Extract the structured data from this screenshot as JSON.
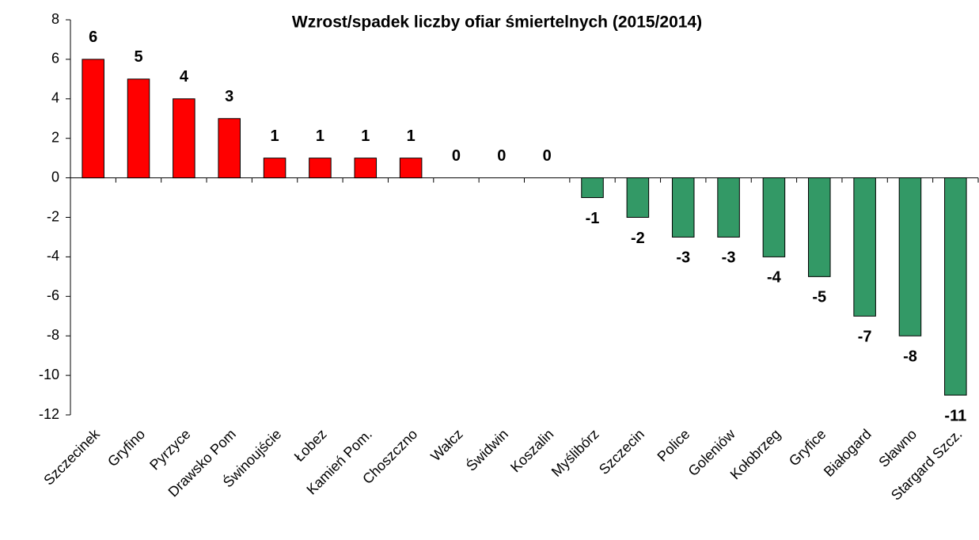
{
  "chart_data": {
    "type": "bar",
    "title": "Wzrost/spadek liczby ofiar śmiertelnych (2015/2014)",
    "categories": [
      "Szczecinek",
      "Gryfino",
      "Pyrzyce",
      "Drawsko Pom",
      "Świnoujście",
      "Łobez",
      "Kamień Pom.",
      "Choszczno",
      "Wałcz",
      "Świdwin",
      "Koszalin",
      "Myślibórz",
      "Szczecin",
      "Police",
      "Goleniów",
      "Kołobrzeg",
      "Gryfice",
      "Białogard",
      "Sławno",
      "Stargard Szcz."
    ],
    "values": [
      6,
      5,
      4,
      3,
      1,
      1,
      1,
      1,
      0,
      0,
      0,
      -1,
      -2,
      -3,
      -3,
      -4,
      -5,
      -7,
      -8,
      -11
    ],
    "colors": [
      "#ff0000",
      "#ff0000",
      "#ff0000",
      "#ff0000",
      "#ff0000",
      "#ff0000",
      "#ff0000",
      "#ff0000",
      "#ff0000",
      "#ff0000",
      "#ff0000",
      "#339966",
      "#339966",
      "#339966",
      "#339966",
      "#339966",
      "#339966",
      "#339966",
      "#339966",
      "#339966"
    ],
    "ylim": [
      -12,
      8
    ],
    "yticks": [
      -12,
      -10,
      -8,
      -6,
      -4,
      -2,
      0,
      2,
      4,
      6,
      8
    ],
    "grid": false
  }
}
